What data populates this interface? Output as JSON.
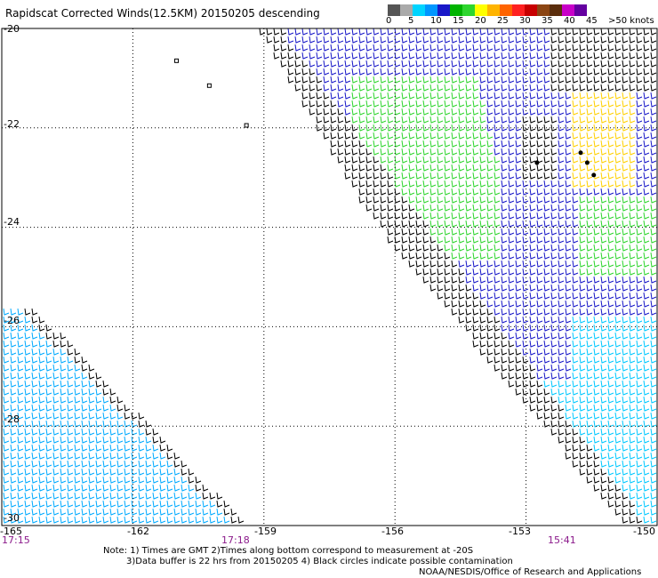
{
  "title": "Rapidscat Corrected Winds(12.5KM) 20150205 descending",
  "legend": {
    "colors": [
      "#555555",
      "#aaaaaa",
      "#00d4ff",
      "#0096ff",
      "#1818c8",
      "#00b400",
      "#2ed52e",
      "#ffff00",
      "#ffb400",
      "#ff6400",
      "#ff2020",
      "#c80000",
      "#8b4513",
      "#5a2d0c",
      "#c800c8",
      "#6400a0"
    ],
    "ticks": [
      "0",
      "5",
      "10",
      "15",
      "20",
      "25",
      "30",
      "35",
      "40",
      "45",
      ">50 knots"
    ]
  },
  "lat_labels": [
    "-20",
    "-22",
    "-24",
    "-26",
    "-28",
    "-30"
  ],
  "lon_labels": [
    "-165",
    "-162",
    "-159",
    "-156",
    "-153",
    "-150"
  ],
  "time_labels": [
    "17:15",
    "17:18",
    "15:41"
  ],
  "notes": {
    "line1": "Note: 1) Times are GMT 2)Times along bottom correspond to measurement at -20S",
    "line2": "3)Data buffer is 22 hrs from 20150205 4) Black circles indicate possible contamination",
    "line3": "NOAA/NESDIS/Office of Research and Applications"
  },
  "map": {
    "lat_range": [
      -30,
      -20
    ],
    "lon_range": [
      -165,
      -150
    ],
    "grid": true,
    "swaths": [
      {
        "name": "east",
        "polygon": [
          [
            -159.2,
            -20
          ],
          [
            -150,
            -20
          ],
          [
            -150,
            -30
          ],
          [
            -150.8,
            -30
          ],
          [
            -156.7,
            -23.7
          ]
        ]
      },
      {
        "name": "southwest",
        "polygon": [
          [
            -165,
            -25.7
          ],
          [
            -164.2,
            -25.7
          ],
          [
            -159.4,
            -30
          ],
          [
            -165,
            -30
          ]
        ]
      }
    ],
    "islands": [
      [
        -161.0,
        -20.65
      ],
      [
        -160.25,
        -21.15
      ],
      [
        -159.4,
        -21.95
      ]
    ],
    "contamination_circles": [
      [
        -152.75,
        -22.7
      ],
      [
        -151.75,
        -22.5
      ],
      [
        -151.6,
        -22.7
      ],
      [
        -151.45,
        -22.95
      ]
    ]
  }
}
